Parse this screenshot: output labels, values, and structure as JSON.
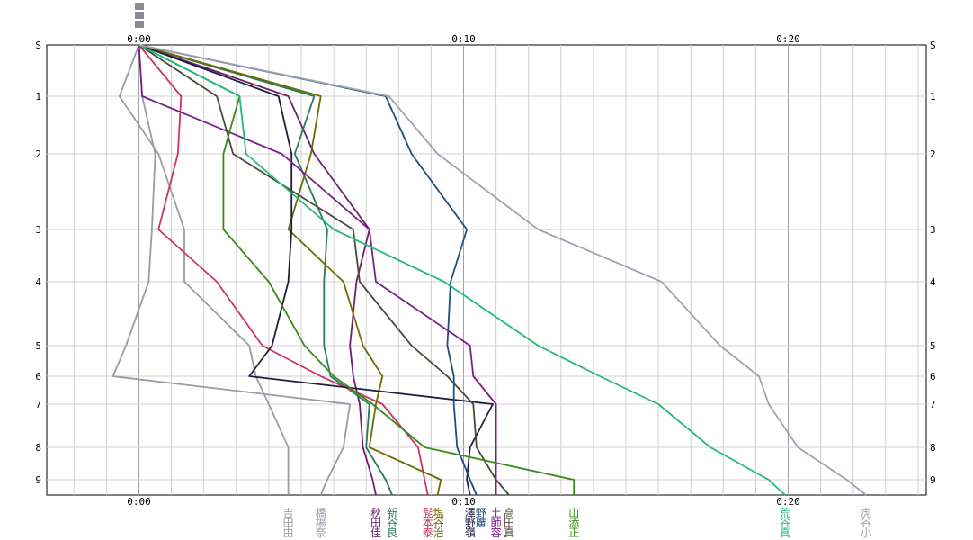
{
  "chart_data": {
    "type": "line",
    "title": "",
    "xlabel": "",
    "ylabel": "",
    "x_unit": "minutes",
    "xlim": [
      -2,
      24
    ],
    "x_ticks": [
      {
        "value": 0,
        "label": "0:00"
      },
      {
        "value": 10,
        "label": "0:10"
      },
      {
        "value": 20,
        "label": "0:20"
      }
    ],
    "y_ticks": [
      "S",
      "1",
      "2",
      "3",
      "4",
      "5",
      "6",
      "7",
      "8",
      "9"
    ],
    "grid": true,
    "series": [
      {
        "name": "吉田由",
        "color": "#9a9aa8",
        "points": [
          [
            0,
            "S"
          ],
          [
            -0.6,
            "1"
          ],
          [
            0.6,
            "2"
          ],
          [
            1.4,
            "3"
          ],
          [
            1.4,
            "4"
          ],
          [
            3.4,
            "5"
          ],
          [
            3.6,
            "6"
          ],
          [
            4,
            "7"
          ],
          [
            4.6,
            "8"
          ],
          [
            4.6,
            "9"
          ],
          [
            4.6,
            "end"
          ]
        ]
      },
      {
        "name": "橋場奈",
        "color": "#9a9aa8",
        "points": [
          [
            0,
            "S"
          ],
          [
            0.1,
            "1"
          ],
          [
            0.5,
            "2"
          ],
          [
            0.4,
            "3"
          ],
          [
            0.3,
            "4"
          ],
          [
            -0.4,
            "5"
          ],
          [
            -0.8,
            "6"
          ],
          [
            6.5,
            "7"
          ],
          [
            6.3,
            "8"
          ],
          [
            5.8,
            "9"
          ],
          [
            5.6,
            "end"
          ]
        ]
      },
      {
        "name": "秋田佳",
        "color": "#6e1f6e",
        "points": [
          [
            0,
            "S"
          ],
          [
            4.6,
            "1"
          ],
          [
            5.4,
            "2"
          ],
          [
            7.1,
            "3"
          ],
          [
            6.7,
            "4"
          ],
          [
            6.5,
            "5"
          ],
          [
            6.6,
            "6"
          ],
          [
            6.8,
            "7"
          ],
          [
            6.9,
            "8"
          ],
          [
            7.2,
            "9"
          ],
          [
            7.3,
            "end"
          ]
        ]
      },
      {
        "name": "新谷良",
        "color": "#2a7a58",
        "points": [
          [
            0,
            "S"
          ],
          [
            5.4,
            "1"
          ],
          [
            4.8,
            "2"
          ],
          [
            5.8,
            "3"
          ],
          [
            5.7,
            "4"
          ],
          [
            5.7,
            "5"
          ],
          [
            5.9,
            "6"
          ],
          [
            7.1,
            "7"
          ],
          [
            7.0,
            "8"
          ],
          [
            7.6,
            "9"
          ],
          [
            7.8,
            "end"
          ]
        ]
      },
      {
        "name": "髭本泰",
        "color": "#cc3366",
        "points": [
          [
            0,
            "S"
          ],
          [
            1.3,
            "1"
          ],
          [
            1.2,
            "2"
          ],
          [
            0.6,
            "3"
          ],
          [
            2.4,
            "4"
          ],
          [
            3.8,
            "5"
          ],
          [
            5.6,
            "6"
          ],
          [
            7.5,
            "7"
          ],
          [
            8.6,
            "8"
          ],
          [
            8.8,
            "9"
          ],
          [
            8.9,
            "end"
          ]
        ]
      },
      {
        "name": "塩谷治",
        "color": "#6b6b00",
        "points": [
          [
            0,
            "S"
          ],
          [
            5.6,
            "1"
          ],
          [
            5.3,
            "2"
          ],
          [
            4.6,
            "3"
          ],
          [
            6.3,
            "4"
          ],
          [
            6.9,
            "5"
          ],
          [
            7.5,
            "6"
          ],
          [
            7.3,
            "7"
          ],
          [
            7.1,
            "8"
          ],
          [
            9.3,
            "9"
          ],
          [
            9.2,
            "end"
          ]
        ]
      },
      {
        "name": "澤野嶺",
        "color": "#1e1e40",
        "points": [
          [
            0,
            "S"
          ],
          [
            4.3,
            "1"
          ],
          [
            4.7,
            "2"
          ],
          [
            4.7,
            "3"
          ],
          [
            4.6,
            "4"
          ],
          [
            4.1,
            "5"
          ],
          [
            3.4,
            "6"
          ],
          [
            10.9,
            "7"
          ],
          [
            10.2,
            "8"
          ],
          [
            10.1,
            "9"
          ],
          [
            10.2,
            "end"
          ]
        ]
      },
      {
        "name": "野廣",
        "color": "#1f4f7a",
        "points": [
          [
            0,
            "S"
          ],
          [
            7.6,
            "1"
          ],
          [
            8.4,
            "2"
          ],
          [
            10.1,
            "3"
          ],
          [
            9.6,
            "4"
          ],
          [
            9.5,
            "5"
          ],
          [
            9.7,
            "6"
          ],
          [
            9.7,
            "7"
          ],
          [
            9.8,
            "8"
          ],
          [
            10.2,
            "9"
          ],
          [
            10.4,
            "end"
          ]
        ]
      },
      {
        "name": "土師容",
        "color": "#7a1f8a",
        "points": [
          [
            0,
            "S"
          ],
          [
            0.1,
            "1"
          ],
          [
            4.4,
            "2"
          ],
          [
            7.1,
            "3"
          ],
          [
            7.3,
            "4"
          ],
          [
            10.2,
            "5"
          ],
          [
            10.3,
            "6"
          ],
          [
            11.0,
            "7"
          ],
          [
            11.0,
            "8"
          ],
          [
            11.0,
            "9"
          ],
          [
            11.0,
            "end"
          ]
        ]
      },
      {
        "name": "高田真",
        "color": "#4a4a3a",
        "points": [
          [
            0,
            "S"
          ],
          [
            2.4,
            "1"
          ],
          [
            2.9,
            "2"
          ],
          [
            6.6,
            "3"
          ],
          [
            6.8,
            "4"
          ],
          [
            8.4,
            "5"
          ],
          [
            9.5,
            "6"
          ],
          [
            10.3,
            "7"
          ],
          [
            10.4,
            "8"
          ],
          [
            11.0,
            "9"
          ],
          [
            11.4,
            "end"
          ]
        ]
      },
      {
        "name": "山添正",
        "color": "#3a8a1a",
        "points": [
          [
            0,
            "S"
          ],
          [
            3.1,
            "1"
          ],
          [
            2.6,
            "2"
          ],
          [
            2.6,
            "3"
          ],
          [
            4.0,
            "4"
          ],
          [
            5.1,
            "5"
          ],
          [
            6.0,
            "6"
          ],
          [
            7.2,
            "7"
          ],
          [
            8.8,
            "8"
          ],
          [
            13.4,
            "9"
          ],
          [
            13.4,
            "end"
          ]
        ]
      },
      {
        "name": "荒谷真",
        "color": "#22bb77",
        "points": [
          [
            0,
            "S"
          ],
          [
            3.1,
            "1"
          ],
          [
            3.3,
            "2"
          ],
          [
            6.0,
            "3"
          ],
          [
            9.4,
            "4"
          ],
          [
            12.3,
            "5"
          ],
          [
            14.2,
            "6"
          ],
          [
            16.0,
            "7"
          ],
          [
            17.6,
            "8"
          ],
          [
            19.4,
            "9"
          ],
          [
            19.9,
            "end"
          ]
        ]
      },
      {
        "name": "虎谷小",
        "color": "#a0a0b4",
        "points": [
          [
            0,
            "S"
          ],
          [
            7.7,
            "1"
          ],
          [
            9.2,
            "2"
          ],
          [
            12.3,
            "3"
          ],
          [
            16.1,
            "4"
          ],
          [
            17.9,
            "5"
          ],
          [
            19.1,
            "6"
          ],
          [
            19.4,
            "7"
          ],
          [
            20.3,
            "8"
          ],
          [
            21.8,
            "9"
          ],
          [
            22.4,
            "end"
          ]
        ]
      }
    ]
  }
}
